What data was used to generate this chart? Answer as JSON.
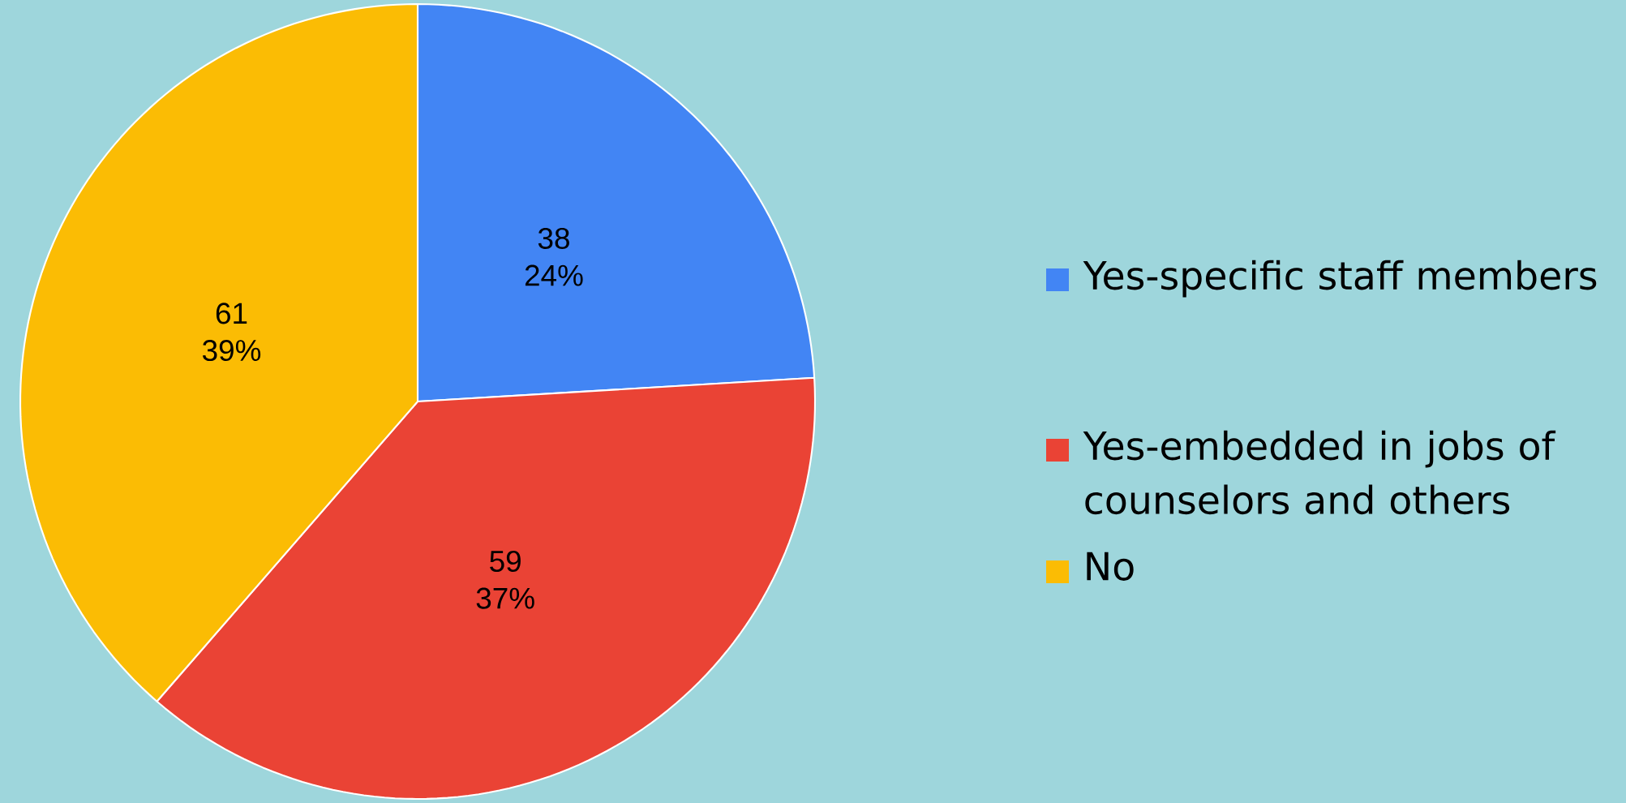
{
  "chart_data": {
    "type": "pie",
    "categories": [
      "Yes-specific staff members",
      "Yes-embedded in jobs of counselors and others",
      "No"
    ],
    "values": [
      38,
      59,
      61
    ],
    "colors": [
      "#4285f4",
      "#ea4335",
      "#fbbc04"
    ],
    "data_labels": true,
    "annotations": [
      {
        "text": "24%",
        "x": "Yes-specific staff members"
      },
      {
        "text": "37%",
        "x": "Yes-embedded in jobs of counselors and others"
      },
      {
        "text": "39%",
        "x": "No"
      }
    ],
    "legend": "right"
  }
}
